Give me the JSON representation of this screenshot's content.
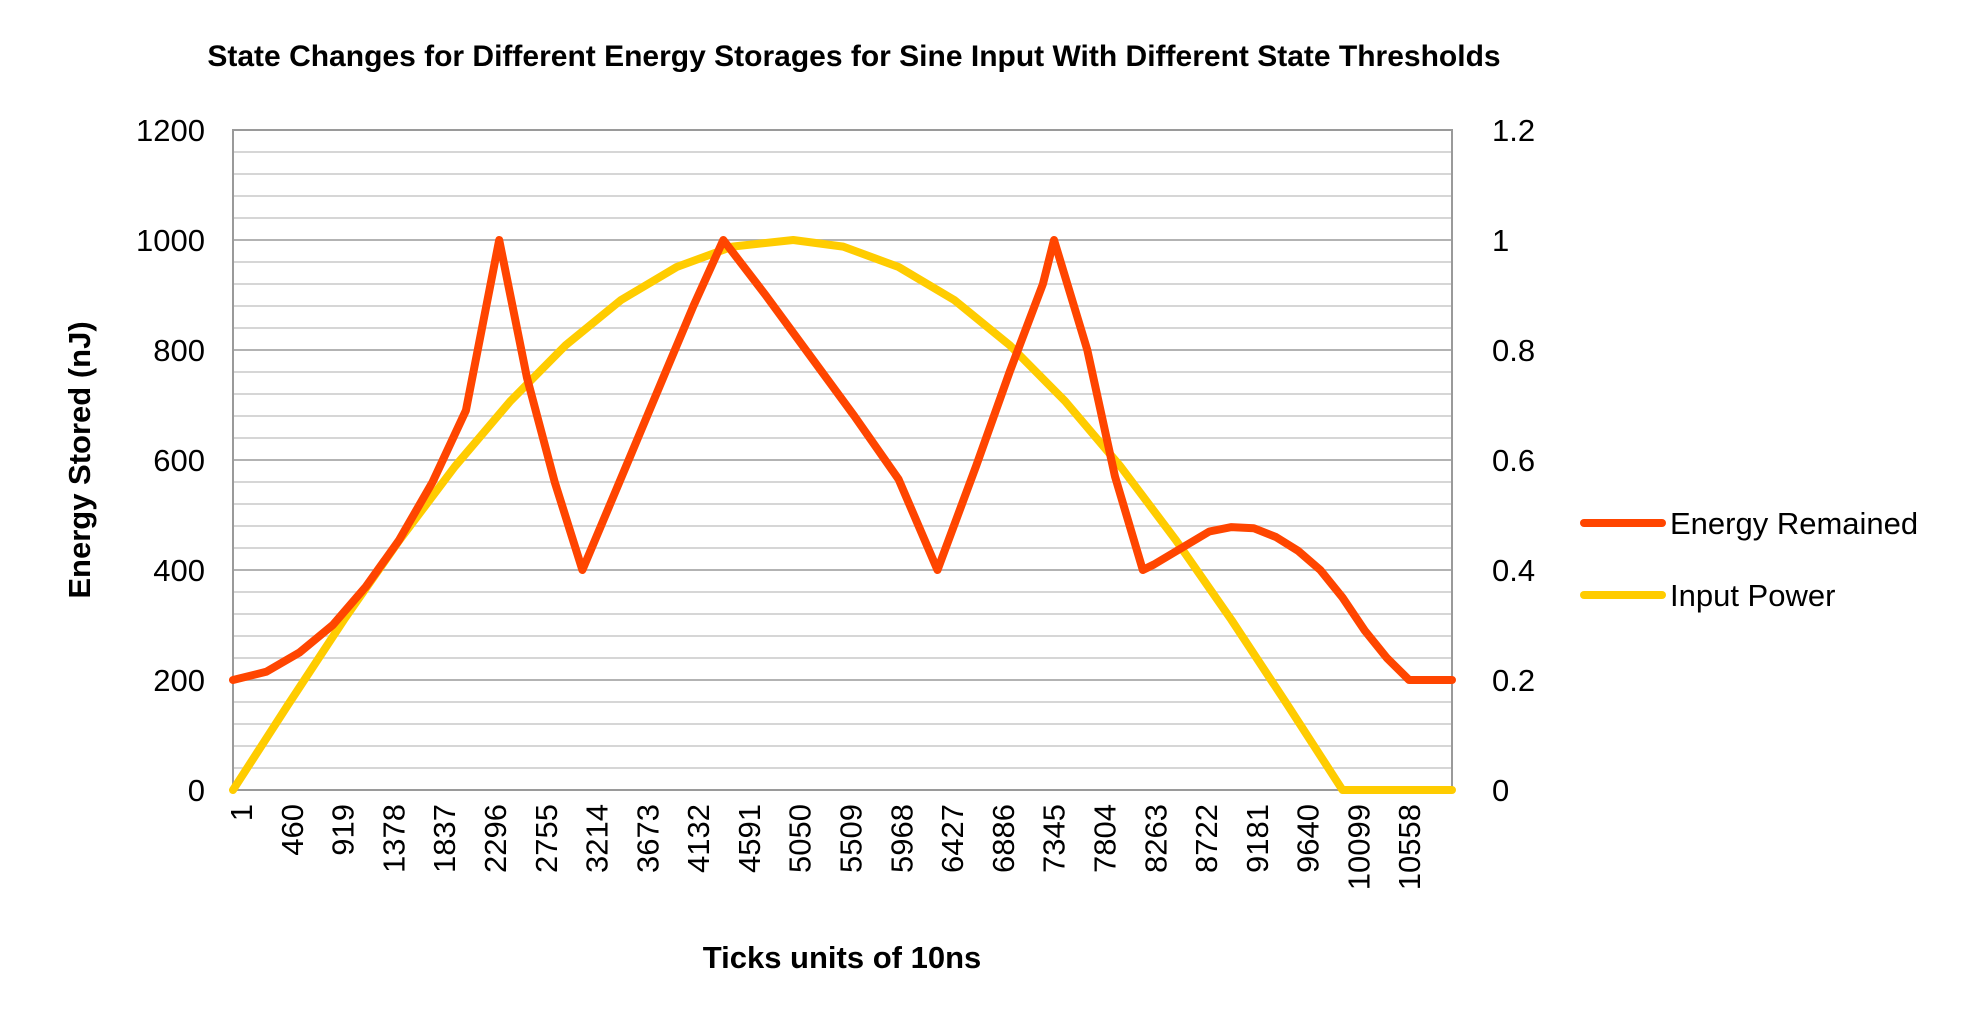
{
  "chart_data": {
    "type": "line",
    "title": "State Changes for Different Energy Storages for Sine Input With Different State Thresholds",
    "xlabel": "Ticks units of 10ns",
    "ylabel": "Energy Stored (nJ)",
    "y2label": "",
    "x_tick_labels": [
      "1",
      "460",
      "919",
      "1378",
      "1837",
      "2296",
      "2755",
      "3214",
      "3673",
      "4132",
      "4591",
      "5050",
      "5509",
      "5968",
      "6427",
      "6886",
      "7345",
      "7804",
      "8263",
      "8722",
      "9181",
      "9640",
      "10099",
      "10558"
    ],
    "x_range": [
      1,
      10987
    ],
    "ylim": [
      0,
      1200
    ],
    "y_ticks": [
      "0",
      "200",
      "400",
      "600",
      "800",
      "1000",
      "1200"
    ],
    "y2lim": [
      0,
      1.2
    ],
    "y2_ticks": [
      "0",
      "0.2",
      "0.4",
      "0.6",
      "0.8",
      "1",
      "1.2"
    ],
    "grid": true,
    "legend_position": "right",
    "series": [
      {
        "name": "Energy Remained",
        "axis": "left",
        "color": "#FF4500",
        "x": [
          1,
          300,
          600,
          900,
          1200,
          1500,
          1800,
          2100,
          2400,
          2650,
          2900,
          3150,
          3400,
          3650,
          3900,
          4150,
          4420,
          4800,
          5200,
          5600,
          6000,
          6350,
          6700,
          7000,
          7300,
          7400,
          7700,
          7950,
          8200,
          8300,
          8550,
          8800,
          9000,
          9200,
          9400,
          9600,
          9800,
          10000,
          10200,
          10400,
          10600,
          10800,
          10987
        ],
        "y": [
          200,
          215,
          250,
          300,
          370,
          455,
          560,
          690,
          1000,
          750,
          560,
          400,
          520,
          640,
          760,
          880,
          1000,
          900,
          790,
          680,
          565,
          400,
          590,
          760,
          920,
          1000,
          800,
          570,
          400,
          410,
          440,
          470,
          478,
          476,
          460,
          435,
          400,
          350,
          290,
          240,
          200,
          200,
          200
        ]
      },
      {
        "name": "Input Power",
        "axis": "right",
        "color": "#FFCC00",
        "x": [
          1,
          500,
          1000,
          1500,
          2000,
          2500,
          3000,
          3500,
          4000,
          4500,
          5050,
          5500,
          6000,
          6500,
          7000,
          7500,
          8000,
          8500,
          9000,
          9500,
          10000,
          10100,
          10987
        ],
        "y": [
          0,
          0.156,
          0.309,
          0.454,
          0.588,
          0.707,
          0.809,
          0.891,
          0.951,
          0.988,
          1.0,
          0.988,
          0.951,
          0.891,
          0.809,
          0.707,
          0.588,
          0.454,
          0.309,
          0.156,
          0,
          0,
          0
        ]
      }
    ]
  }
}
